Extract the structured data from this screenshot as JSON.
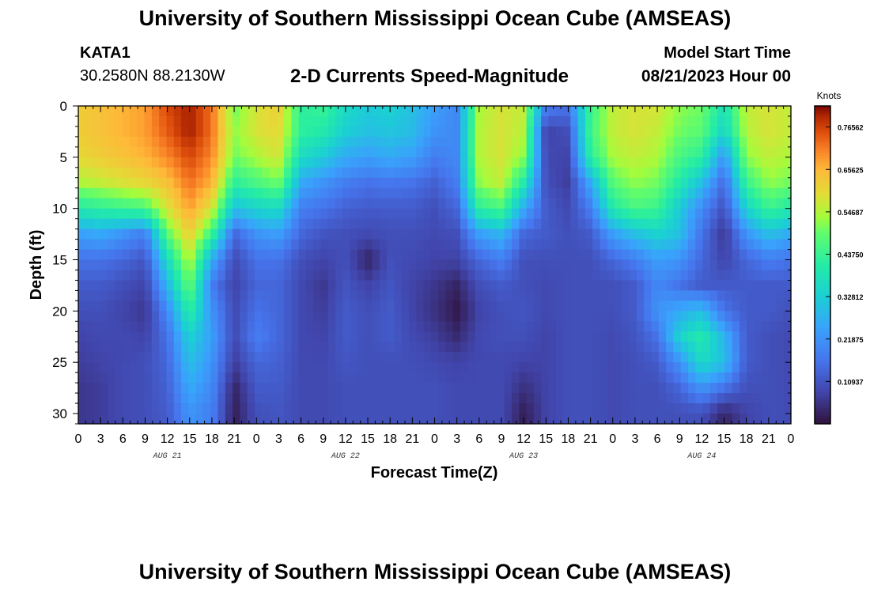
{
  "header": {
    "title": "University of Southern Mississippi Ocean Cube (AMSEAS)",
    "station": "KATA1",
    "coords": "30.2580N  88.2130W",
    "subtitle": "2-D Currents Speed-Magnitude",
    "model_start_label": "Model Start Time",
    "model_start_value": "08/21/2023 Hour 00"
  },
  "footer": {
    "title_repeat": "University of Southern Mississippi Ocean Cube (AMSEAS)"
  },
  "chart_data": {
    "type": "heatmap",
    "title": "2-D Currents Speed-Magnitude",
    "xlabel": "Forecast Time(Z)",
    "ylabel": "Depth (ft)",
    "x_range_hours": [
      0,
      96
    ],
    "y_range_ft": [
      0,
      31
    ],
    "x_tick_labels": [
      "0",
      "3",
      "6",
      "9",
      "12",
      "15",
      "18",
      "21",
      "0",
      "3",
      "6",
      "9",
      "12",
      "15",
      "18",
      "21",
      "0",
      "3",
      "6",
      "9",
      "12",
      "15",
      "18",
      "21",
      "0",
      "3",
      "6",
      "9",
      "12",
      "15",
      "18",
      "21",
      "0"
    ],
    "day_labels": [
      {
        "label": "AUG 21",
        "hour": 12
      },
      {
        "label": "AUG 22",
        "hour": 36
      },
      {
        "label": "AUG 23",
        "hour": 60
      },
      {
        "label": "AUG 24",
        "hour": 84
      }
    ],
    "y_ticks": [
      0,
      5,
      10,
      15,
      20,
      25,
      30
    ],
    "colorbar": {
      "label": "Knots",
      "min": 0,
      "max": 0.82,
      "ticks": [
        "0.76562",
        "0.65625",
        "0.54687",
        "0.43750",
        "0.32812",
        "0.21875",
        "0.10937"
      ],
      "tick_values": [
        0.76562,
        0.65625,
        0.54687,
        0.4375,
        0.32812,
        0.21875,
        0.10937
      ]
    },
    "x_hours": [
      0,
      3,
      6,
      9,
      12,
      15,
      18,
      21,
      24,
      27,
      30,
      33,
      36,
      39,
      42,
      45,
      48,
      51,
      54,
      57,
      60,
      63,
      66,
      69,
      72,
      75,
      78,
      81,
      84,
      87,
      90,
      93,
      96
    ],
    "depth_levels_ft": [
      0,
      2.5,
      5,
      7.5,
      10,
      12.5,
      15,
      17.5,
      20,
      22.5,
      25,
      27.5,
      30,
      31
    ],
    "speed_knots": [
      [
        0.62,
        0.64,
        0.66,
        0.68,
        0.76,
        0.8,
        0.72,
        0.5,
        0.58,
        0.62,
        0.42,
        0.44,
        0.36,
        0.32,
        0.34,
        0.3,
        0.24,
        0.2,
        0.54,
        0.58,
        0.56,
        0.18,
        0.16,
        0.44,
        0.56,
        0.58,
        0.58,
        0.52,
        0.5,
        0.38,
        0.56,
        0.58,
        0.56
      ],
      [
        0.62,
        0.64,
        0.66,
        0.68,
        0.74,
        0.8,
        0.72,
        0.52,
        0.58,
        0.6,
        0.42,
        0.4,
        0.33,
        0.3,
        0.31,
        0.29,
        0.22,
        0.2,
        0.55,
        0.58,
        0.55,
        0.08,
        0.1,
        0.45,
        0.56,
        0.58,
        0.56,
        0.5,
        0.48,
        0.34,
        0.55,
        0.58,
        0.56
      ],
      [
        0.6,
        0.62,
        0.64,
        0.66,
        0.7,
        0.76,
        0.7,
        0.5,
        0.54,
        0.58,
        0.36,
        0.32,
        0.26,
        0.24,
        0.26,
        0.24,
        0.18,
        0.2,
        0.55,
        0.58,
        0.52,
        0.09,
        0.08,
        0.42,
        0.54,
        0.56,
        0.54,
        0.46,
        0.42,
        0.22,
        0.52,
        0.56,
        0.54
      ],
      [
        0.54,
        0.56,
        0.58,
        0.6,
        0.64,
        0.72,
        0.66,
        0.42,
        0.46,
        0.5,
        0.26,
        0.22,
        0.18,
        0.16,
        0.17,
        0.16,
        0.13,
        0.18,
        0.52,
        0.56,
        0.4,
        0.1,
        0.07,
        0.26,
        0.48,
        0.52,
        0.5,
        0.4,
        0.3,
        0.14,
        0.44,
        0.52,
        0.5
      ],
      [
        0.4,
        0.42,
        0.44,
        0.46,
        0.58,
        0.68,
        0.58,
        0.3,
        0.34,
        0.36,
        0.18,
        0.16,
        0.13,
        0.12,
        0.12,
        0.12,
        0.1,
        0.14,
        0.42,
        0.46,
        0.26,
        0.12,
        0.09,
        0.18,
        0.4,
        0.46,
        0.44,
        0.32,
        0.2,
        0.1,
        0.34,
        0.44,
        0.4
      ],
      [
        0.24,
        0.26,
        0.22,
        0.18,
        0.48,
        0.62,
        0.44,
        0.14,
        0.22,
        0.24,
        0.14,
        0.11,
        0.1,
        0.09,
        0.1,
        0.1,
        0.09,
        0.1,
        0.24,
        0.28,
        0.14,
        0.12,
        0.1,
        0.12,
        0.24,
        0.3,
        0.34,
        0.3,
        0.16,
        0.06,
        0.22,
        0.3,
        0.26
      ],
      [
        0.16,
        0.16,
        0.14,
        0.11,
        0.36,
        0.56,
        0.26,
        0.09,
        0.16,
        0.16,
        0.1,
        0.08,
        0.1,
        0.03,
        0.1,
        0.09,
        0.08,
        0.08,
        0.14,
        0.18,
        0.1,
        0.1,
        0.1,
        0.1,
        0.14,
        0.18,
        0.24,
        0.22,
        0.14,
        0.08,
        0.14,
        0.18,
        0.16
      ],
      [
        0.12,
        0.12,
        0.1,
        0.08,
        0.28,
        0.5,
        0.18,
        0.08,
        0.14,
        0.14,
        0.09,
        0.06,
        0.11,
        0.08,
        0.11,
        0.08,
        0.06,
        0.03,
        0.1,
        0.12,
        0.1,
        0.09,
        0.1,
        0.1,
        0.1,
        0.12,
        0.2,
        0.16,
        0.12,
        0.12,
        0.12,
        0.12,
        0.12
      ],
      [
        0.1,
        0.1,
        0.08,
        0.06,
        0.2,
        0.42,
        0.22,
        0.09,
        0.16,
        0.14,
        0.09,
        0.07,
        0.12,
        0.1,
        0.12,
        0.08,
        0.05,
        0.01,
        0.08,
        0.1,
        0.11,
        0.09,
        0.1,
        0.1,
        0.1,
        0.12,
        0.22,
        0.26,
        0.3,
        0.16,
        0.12,
        0.12,
        0.1
      ],
      [
        0.08,
        0.09,
        0.09,
        0.08,
        0.16,
        0.34,
        0.24,
        0.09,
        0.18,
        0.14,
        0.09,
        0.08,
        0.12,
        0.1,
        0.12,
        0.09,
        0.07,
        0.04,
        0.09,
        0.1,
        0.1,
        0.08,
        0.1,
        0.1,
        0.09,
        0.11,
        0.16,
        0.34,
        0.4,
        0.28,
        0.12,
        0.1,
        0.09
      ],
      [
        0.07,
        0.08,
        0.09,
        0.1,
        0.14,
        0.3,
        0.22,
        0.07,
        0.14,
        0.13,
        0.09,
        0.09,
        0.11,
        0.1,
        0.1,
        0.1,
        0.09,
        0.08,
        0.09,
        0.09,
        0.08,
        0.08,
        0.1,
        0.1,
        0.09,
        0.1,
        0.12,
        0.22,
        0.36,
        0.3,
        0.12,
        0.1,
        0.09
      ],
      [
        0.06,
        0.07,
        0.09,
        0.1,
        0.13,
        0.26,
        0.2,
        0.03,
        0.12,
        0.12,
        0.09,
        0.09,
        0.1,
        0.1,
        0.1,
        0.1,
        0.1,
        0.09,
        0.09,
        0.09,
        0.05,
        0.08,
        0.1,
        0.1,
        0.09,
        0.1,
        0.1,
        0.14,
        0.22,
        0.16,
        0.1,
        0.1,
        0.09
      ],
      [
        0.06,
        0.07,
        0.09,
        0.1,
        0.12,
        0.22,
        0.18,
        0.02,
        0.1,
        0.11,
        0.09,
        0.09,
        0.1,
        0.1,
        0.1,
        0.1,
        0.1,
        0.09,
        0.09,
        0.09,
        0.02,
        0.08,
        0.1,
        0.1,
        0.09,
        0.1,
        0.1,
        0.1,
        0.1,
        0.03,
        0.08,
        0.1,
        0.09
      ],
      [
        0.06,
        0.07,
        0.09,
        0.1,
        0.12,
        0.22,
        0.18,
        0.02,
        0.1,
        0.11,
        0.09,
        0.09,
        0.1,
        0.1,
        0.1,
        0.1,
        0.1,
        0.09,
        0.09,
        0.09,
        0.02,
        0.08,
        0.1,
        0.1,
        0.09,
        0.1,
        0.1,
        0.1,
        0.1,
        0.03,
        0.08,
        0.1,
        0.09
      ]
    ]
  }
}
